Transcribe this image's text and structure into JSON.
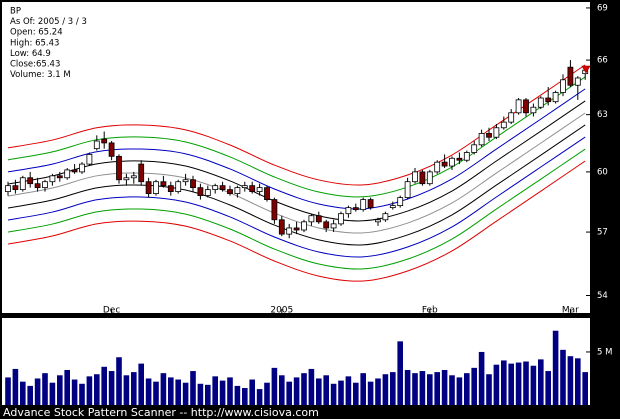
{
  "chart_data": {
    "type": "candlestick",
    "info": [
      "BP",
      "As Of: 2005 / 3 / 3",
      "Open: 65.24",
      "High: 65.43",
      "Low: 64.9",
      "Close:65.43",
      "Volume: 3.1 M"
    ],
    "categories": [
      null,
      null,
      null,
      null,
      null,
      null,
      null,
      null,
      null,
      null,
      null,
      null,
      null,
      null,
      "Dec",
      null,
      null,
      null,
      null,
      null,
      null,
      null,
      null,
      null,
      null,
      null,
      null,
      null,
      null,
      null,
      null,
      null,
      null,
      null,
      null,
      null,
      null,
      "2005",
      null,
      null,
      null,
      null,
      null,
      null,
      null,
      null,
      null,
      null,
      null,
      null,
      null,
      null,
      null,
      null,
      null,
      null,
      null,
      "Feb",
      null,
      null,
      null,
      null,
      null,
      null,
      null,
      null,
      null,
      null,
      null,
      null,
      null,
      null,
      null,
      null,
      null,
      null,
      "Mar",
      null,
      null
    ],
    "open": [
      59.0,
      59.3,
      59.1,
      59.7,
      59.4,
      59.2,
      59.5,
      59.8,
      59.7,
      60.1,
      60.0,
      60.4,
      61.2,
      61.7,
      61.5,
      60.8,
      59.6,
      59.7,
      60.4,
      59.5,
      58.9,
      59.5,
      59.3,
      59.0,
      59.5,
      59.6,
      59.2,
      58.8,
      59.1,
      59.3,
      59.1,
      58.9,
      59.2,
      59.3,
      59.0,
      59.2,
      58.6,
      57.6,
      56.9,
      57.2,
      57.1,
      57.5,
      57.8,
      57.5,
      57.2,
      57.4,
      57.9,
      58.2,
      58.1,
      58.6,
      57.5,
      57.6,
      58.2,
      58.3,
      58.7,
      59.5,
      60.0,
      59.4,
      60.0,
      60.5,
      60.3,
      60.7,
      60.6,
      61.0,
      61.4,
      62.0,
      61.8,
      62.3,
      62.6,
      63.1,
      63.8,
      63.1,
      63.4,
      63.9,
      63.7,
      64.2,
      65.6,
      64.6,
      65.24
    ],
    "high": [
      59.5,
      59.6,
      59.8,
      60.0,
      59.7,
      59.6,
      59.9,
      60.0,
      60.2,
      60.4,
      60.5,
      61.0,
      61.9,
      62.1,
      61.6,
      60.9,
      59.9,
      60.0,
      60.6,
      59.7,
      59.6,
      59.8,
      59.5,
      59.6,
      59.9,
      59.8,
      59.4,
      59.3,
      59.4,
      59.5,
      59.3,
      59.3,
      59.5,
      59.5,
      59.4,
      59.3,
      58.7,
      57.8,
      57.4,
      57.5,
      57.6,
      57.9,
      58.0,
      57.6,
      57.6,
      58.0,
      58.3,
      58.4,
      58.7,
      58.7,
      57.7,
      58.0,
      58.5,
      58.8,
      59.7,
      60.2,
      60.1,
      60.1,
      60.6,
      60.9,
      60.8,
      61.0,
      61.1,
      61.6,
      62.2,
      62.3,
      62.5,
      62.9,
      63.3,
      63.9,
      63.9,
      63.6,
      64.0,
      64.5,
      64.3,
      65.2,
      66.0,
      65.1,
      65.43
    ],
    "low": [
      58.8,
      58.9,
      59.0,
      59.2,
      59.0,
      59.0,
      59.3,
      59.5,
      59.6,
      59.9,
      59.9,
      60.3,
      61.1,
      61.2,
      60.6,
      59.4,
      59.3,
      59.4,
      59.3,
      58.7,
      58.8,
      59.2,
      58.8,
      58.9,
      59.3,
      59.0,
      58.6,
      58.7,
      58.9,
      59.0,
      58.8,
      58.7,
      59.0,
      58.9,
      58.8,
      58.5,
      57.4,
      56.8,
      56.7,
      56.9,
      57.0,
      57.3,
      57.4,
      57.0,
      57.0,
      57.3,
      57.7,
      58.0,
      58.0,
      58.1,
      57.3,
      57.5,
      58.1,
      58.2,
      58.6,
      59.4,
      59.3,
      59.3,
      59.9,
      60.2,
      60.1,
      60.4,
      60.5,
      60.9,
      61.3,
      61.6,
      61.7,
      62.2,
      62.5,
      63.0,
      62.9,
      62.9,
      63.3,
      63.5,
      63.6,
      64.0,
      64.5,
      63.8,
      64.9
    ],
    "close": [
      59.3,
      59.1,
      59.7,
      59.4,
      59.2,
      59.5,
      59.8,
      59.7,
      60.1,
      60.0,
      60.4,
      60.9,
      61.6,
      61.5,
      60.8,
      59.6,
      59.7,
      59.8,
      59.5,
      58.9,
      59.5,
      59.3,
      59.0,
      59.5,
      59.6,
      59.2,
      58.8,
      59.1,
      59.3,
      59.1,
      58.9,
      59.2,
      59.3,
      59.0,
      59.2,
      58.6,
      57.6,
      56.9,
      57.2,
      57.1,
      57.5,
      57.8,
      57.5,
      57.2,
      57.4,
      57.9,
      58.2,
      58.1,
      58.6,
      58.2,
      57.6,
      57.9,
      58.3,
      58.7,
      59.5,
      60.0,
      59.4,
      60.0,
      60.5,
      60.3,
      60.7,
      60.6,
      61.0,
      61.4,
      62.0,
      61.8,
      62.3,
      62.6,
      63.1,
      63.8,
      63.1,
      63.4,
      63.9,
      63.7,
      64.2,
      64.9,
      64.6,
      65.0,
      65.43
    ],
    "volume": [
      2.6,
      3.4,
      2.2,
      1.8,
      2.5,
      3.0,
      2.1,
      2.8,
      3.3,
      2.4,
      2.0,
      2.7,
      2.9,
      3.6,
      3.2,
      4.5,
      2.8,
      3.1,
      3.9,
      2.5,
      2.2,
      3.0,
      2.6,
      2.4,
      2.1,
      3.2,
      2.0,
      1.9,
      2.7,
      2.3,
      2.6,
      1.8,
      1.6,
      2.4,
      1.5,
      2.1,
      3.5,
      2.8,
      2.2,
      2.6,
      3.0,
      3.4,
      2.5,
      2.8,
      2.0,
      2.3,
      2.7,
      2.1,
      3.0,
      2.2,
      2.5,
      2.9,
      3.1,
      6.0,
      3.3,
      3.0,
      3.2,
      2.9,
      3.1,
      3.3,
      2.8,
      2.6,
      3.0,
      3.5,
      5.0,
      2.9,
      3.8,
      4.2,
      3.9,
      4.0,
      4.1,
      3.7,
      4.3,
      3.2,
      7.0,
      5.2,
      4.6,
      4.4,
      3.1
    ],
    "up_color": "#ffffff",
    "down_color": "#800000",
    "volume_color": "#000080",
    "ylim": [
      53.2,
      69.35
    ],
    "yticks": [
      54,
      57,
      60,
      63,
      66,
      69
    ],
    "log_scale": true,
    "volume_ylim": [
      0,
      8.2
    ],
    "volume_yticks": [
      {
        "value": 5,
        "label": "5 M"
      }
    ],
    "bands": {
      "x": [
        0,
        6,
        12,
        18,
        24,
        30,
        36,
        42,
        48,
        54,
        60,
        66,
        72,
        78
      ],
      "series": [
        {
          "color": "#e00000",
          "values": [
            61.24,
            61.65,
            62.3,
            62.45,
            62.19,
            61.39,
            60.35,
            59.59,
            59.34,
            59.84,
            60.87,
            62.45,
            64.06,
            65.73
          ]
        },
        {
          "color": "#00a000",
          "values": [
            60.62,
            61.03,
            61.67,
            61.81,
            61.55,
            60.77,
            59.74,
            58.98,
            58.74,
            59.23,
            60.25,
            61.81,
            63.41,
            65.06
          ]
        },
        {
          "color": "#0000c0",
          "values": [
            60.0,
            60.4,
            61.04,
            61.18,
            60.93,
            60.15,
            59.13,
            58.38,
            58.14,
            58.63,
            59.64,
            61.18,
            62.76,
            64.4
          ]
        },
        {
          "color": "#000000",
          "values": [
            59.38,
            59.79,
            60.41,
            60.56,
            60.3,
            59.54,
            58.53,
            57.79,
            57.55,
            58.03,
            59.03,
            60.56,
            62.12,
            63.74
          ]
        },
        {
          "color": "#909090",
          "values": [
            58.78,
            59.18,
            59.8,
            59.94,
            59.69,
            58.93,
            57.93,
            57.2,
            56.96,
            57.44,
            58.43,
            59.94,
            61.49,
            63.09
          ]
        },
        {
          "color": "#000000",
          "values": [
            58.18,
            58.58,
            59.19,
            59.33,
            59.08,
            58.33,
            57.34,
            56.62,
            56.38,
            56.86,
            57.84,
            59.33,
            60.86,
            62.45
          ]
        },
        {
          "color": "#0000c0",
          "values": [
            57.59,
            57.98,
            58.59,
            58.73,
            58.48,
            57.74,
            56.76,
            56.04,
            55.81,
            56.28,
            57.25,
            58.73,
            60.25,
            61.81
          ]
        },
        {
          "color": "#00a000",
          "values": [
            57.0,
            57.39,
            57.99,
            58.13,
            57.88,
            57.15,
            56.18,
            55.47,
            55.24,
            55.7,
            56.66,
            58.13,
            59.63,
            61.18
          ]
        },
        {
          "color": "#e00000",
          "values": [
            56.42,
            56.81,
            57.4,
            57.53,
            57.29,
            56.57,
            55.61,
            54.9,
            54.67,
            55.14,
            56.09,
            57.53,
            59.02,
            60.56
          ]
        }
      ]
    }
  },
  "footer": "Advance Stock Pattern Scanner -- http://www.cisiova.com"
}
